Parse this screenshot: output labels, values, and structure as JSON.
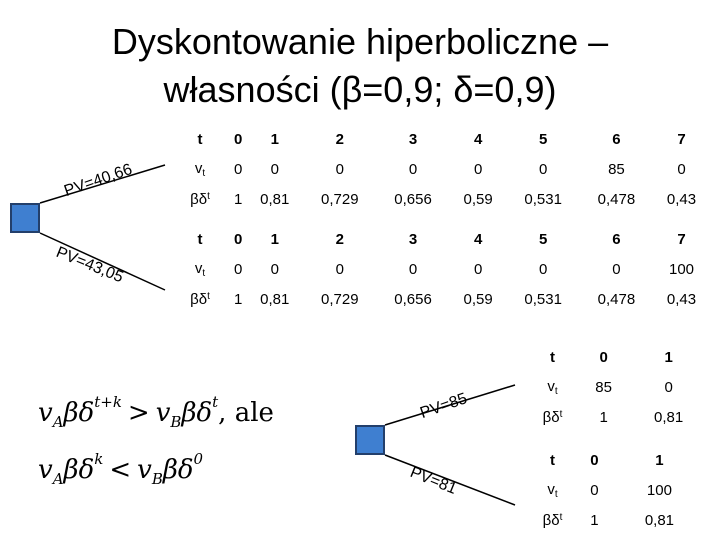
{
  "title": {
    "line1": "Dyskontowanie hiperboliczne –",
    "line2": "własności (β=0,9; δ=0,9)"
  },
  "top_tree": {
    "branch_a_label": "PV=40,66",
    "branch_b_label": "PV=43,05"
  },
  "bottom_tree": {
    "branch_a_label": "PV=85",
    "branch_b_label": "PV=81"
  },
  "table_top_a": {
    "header_label": "t",
    "header": [
      "0",
      "1",
      "2",
      "3",
      "4",
      "5",
      "6",
      "7"
    ],
    "v_label": "v",
    "v_sub": "t",
    "v": [
      "0",
      "0",
      "0",
      "0",
      "0",
      "0",
      "85",
      "0"
    ],
    "bd_label": "βδ",
    "bd_sup": "t",
    "bd": [
      "1",
      "0,81",
      "0,729",
      "0,656",
      "0,59",
      "0,531",
      "0,478",
      "0,43"
    ]
  },
  "table_top_b": {
    "header_label": "t",
    "header": [
      "0",
      "1",
      "2",
      "3",
      "4",
      "5",
      "6",
      "7"
    ],
    "v_label": "v",
    "v_sub": "t",
    "v": [
      "0",
      "0",
      "0",
      "0",
      "0",
      "0",
      "0",
      "100"
    ],
    "bd_label": "βδ",
    "bd_sup": "t",
    "bd": [
      "1",
      "0,81",
      "0,729",
      "0,656",
      "0,59",
      "0,531",
      "0,478",
      "0,43"
    ]
  },
  "table_bot_a": {
    "header_label": "t",
    "header": [
      "0",
      "1"
    ],
    "v_label": "v",
    "v_sub": "t",
    "v": [
      "85",
      "0"
    ],
    "bd_label": "βδ",
    "bd_sup": "t",
    "bd": [
      "1",
      "0,81"
    ]
  },
  "table_bot_b": {
    "header_label": "t",
    "header": [
      "0",
      "1"
    ],
    "v_label": "v",
    "v_sub": "t",
    "v": [
      "0",
      "100"
    ],
    "bd_label": "βδ",
    "bd_sup": "t",
    "bd": [
      "1",
      "0,81"
    ]
  },
  "formula": {
    "line1": {
      "v": "v",
      "sub_a": "A",
      "bd": "βδ",
      "sup_tk": "t+k",
      "op": ">",
      "sub_b": "B",
      "sup_t": "t",
      "suffix": ", ale"
    },
    "line2": {
      "v": "v",
      "sub_a": "A",
      "bd": "βδ",
      "sup_k": "k",
      "op": "<",
      "sub_b": "B",
      "sup_0": "0"
    }
  }
}
